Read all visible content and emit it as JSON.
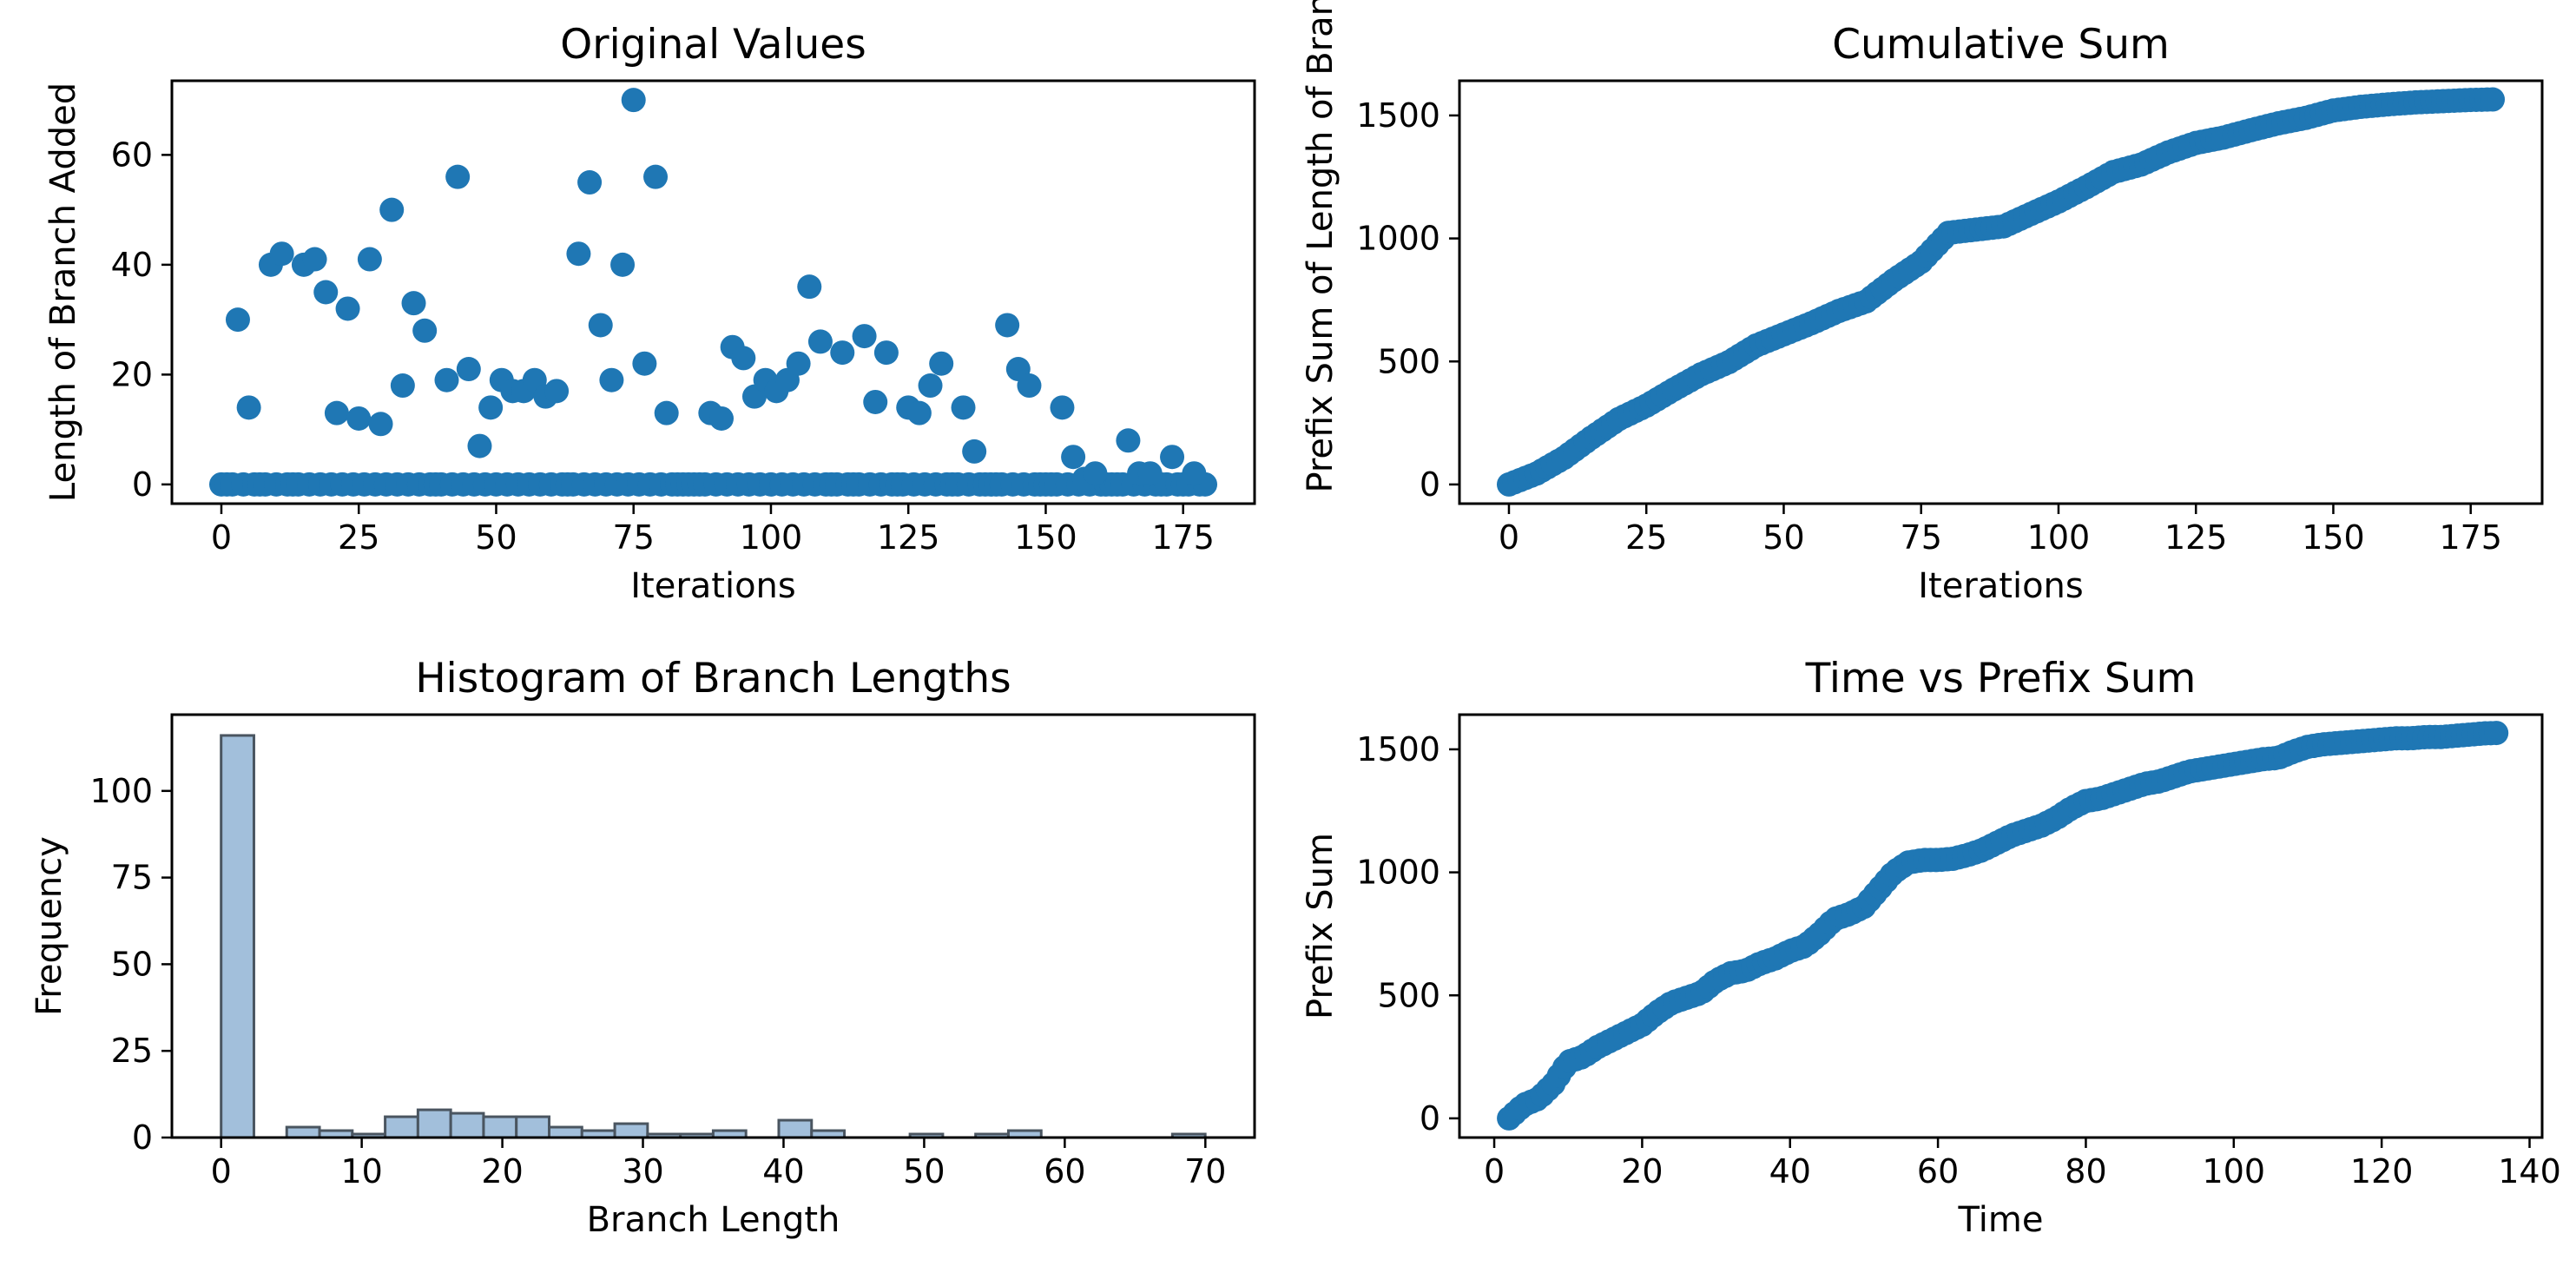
{
  "colors": {
    "marker": "#1f77b4",
    "hist_fill": "#a2bfdb",
    "hist_edge": "#4a5560"
  },
  "chart_data": [
    {
      "id": "original",
      "type": "scatter",
      "title": "Original Values",
      "xlabel": "Iterations",
      "ylabel": "Length of Branch Added",
      "xlim": [
        -9,
        188
      ],
      "ylim": [
        -3.5,
        73.5
      ],
      "xticks": [
        0,
        25,
        50,
        75,
        100,
        125,
        150,
        175
      ],
      "yticks": [
        0,
        20,
        40,
        60
      ],
      "points": [
        [
          3,
          30
        ],
        [
          5,
          14
        ],
        [
          9,
          40
        ],
        [
          11,
          42
        ],
        [
          15,
          40
        ],
        [
          17,
          41
        ],
        [
          19,
          35
        ],
        [
          21,
          13
        ],
        [
          23,
          32
        ],
        [
          25,
          12
        ],
        [
          27,
          41
        ],
        [
          29,
          11
        ],
        [
          31,
          50
        ],
        [
          33,
          18
        ],
        [
          35,
          33
        ],
        [
          37,
          28
        ],
        [
          41,
          19
        ],
        [
          43,
          56
        ],
        [
          45,
          21
        ],
        [
          47,
          7
        ],
        [
          49,
          14
        ],
        [
          51,
          19
        ],
        [
          53,
          17
        ],
        [
          55,
          17
        ],
        [
          57,
          19
        ],
        [
          59,
          16
        ],
        [
          61,
          17
        ],
        [
          65,
          42
        ],
        [
          67,
          55
        ],
        [
          69,
          29
        ],
        [
          71,
          19
        ],
        [
          73,
          40
        ],
        [
          75,
          70
        ],
        [
          77,
          22
        ],
        [
          79,
          56
        ],
        [
          81,
          13
        ],
        [
          89,
          13
        ],
        [
          91,
          12
        ],
        [
          93,
          25
        ],
        [
          95,
          23
        ],
        [
          97,
          16
        ],
        [
          99,
          19
        ],
        [
          101,
          17
        ],
        [
          103,
          19
        ],
        [
          105,
          22
        ],
        [
          107,
          36
        ],
        [
          109,
          26
        ],
        [
          113,
          24
        ],
        [
          117,
          27
        ],
        [
          119,
          15
        ],
        [
          121,
          24
        ],
        [
          125,
          14
        ],
        [
          127,
          13
        ],
        [
          129,
          18
        ],
        [
          131,
          22
        ],
        [
          135,
          14
        ],
        [
          137,
          6
        ],
        [
          143,
          29
        ],
        [
          145,
          21
        ],
        [
          147,
          18
        ],
        [
          153,
          14
        ],
        [
          155,
          5
        ],
        [
          157,
          1
        ],
        [
          159,
          2
        ],
        [
          165,
          8
        ],
        [
          167,
          2
        ],
        [
          169,
          2
        ],
        [
          173,
          5
        ],
        [
          177,
          2
        ]
      ],
      "zeros_at": [
        0,
        1,
        2,
        4,
        6,
        7,
        8,
        10,
        12,
        13,
        14,
        16,
        18,
        20,
        22,
        24,
        26,
        28,
        30,
        32,
        34,
        36,
        38,
        39,
        40,
        42,
        44,
        46,
        48,
        50,
        52,
        54,
        56,
        58,
        60,
        62,
        63,
        64,
        66,
        68,
        70,
        72,
        74,
        76,
        78,
        80,
        82,
        83,
        84,
        85,
        86,
        87,
        88,
        90,
        92,
        94,
        96,
        98,
        100,
        102,
        104,
        106,
        108,
        110,
        111,
        112,
        114,
        115,
        116,
        118,
        120,
        122,
        123,
        124,
        126,
        128,
        130,
        132,
        133,
        134,
        136,
        138,
        139,
        140,
        141,
        142,
        144,
        146,
        148,
        149,
        150,
        151,
        152,
        154,
        156,
        158,
        160,
        161,
        162,
        163,
        164,
        166,
        168,
        170,
        171,
        172,
        174,
        175,
        176,
        178,
        179
      ]
    },
    {
      "id": "cumsum",
      "type": "scatter",
      "title": "Cumulative Sum",
      "xlabel": "Iterations",
      "ylabel": "Prefix Sum of Length of Branch Added",
      "xlim": [
        -9,
        188
      ],
      "ylim": [
        -78,
        1641
      ],
      "xticks": [
        0,
        25,
        50,
        75,
        100,
        125,
        150,
        175
      ],
      "yticks": [
        0,
        500,
        1000,
        1500
      ],
      "curve": [
        [
          0,
          0
        ],
        [
          5,
          44
        ],
        [
          10,
          108
        ],
        [
          15,
          190
        ],
        [
          20,
          266
        ],
        [
          25,
          320
        ],
        [
          30,
          386
        ],
        [
          35,
          448
        ],
        [
          40,
          497
        ],
        [
          45,
          565
        ],
        [
          50,
          610
        ],
        [
          55,
          655
        ],
        [
          60,
          705
        ],
        [
          65,
          744
        ],
        [
          70,
          830
        ],
        [
          75,
          905
        ],
        [
          80,
          1023
        ],
        [
          85,
          1036
        ],
        [
          90,
          1049
        ],
        [
          95,
          1100
        ],
        [
          100,
          1150
        ],
        [
          105,
          1208
        ],
        [
          110,
          1270
        ],
        [
          115,
          1300
        ],
        [
          120,
          1350
        ],
        [
          125,
          1388
        ],
        [
          130,
          1410
        ],
        [
          135,
          1440
        ],
        [
          140,
          1468
        ],
        [
          145,
          1490
        ],
        [
          150,
          1520
        ],
        [
          155,
          1535
        ],
        [
          160,
          1545
        ],
        [
          165,
          1553
        ],
        [
          170,
          1558
        ],
        [
          175,
          1563
        ],
        [
          179,
          1565
        ]
      ]
    },
    {
      "id": "histogram",
      "type": "bar",
      "title": "Histogram of Branch Lengths",
      "xlabel": "Branch Length",
      "ylabel": "Frequency",
      "xlim": [
        -3.5,
        73.5
      ],
      "ylim": [
        0,
        122
      ],
      "xticks": [
        0,
        10,
        20,
        30,
        40,
        50,
        60,
        70
      ],
      "yticks": [
        0,
        25,
        50,
        75,
        100
      ],
      "bin_start": 0,
      "bin_width": 2.333,
      "counts": [
        116,
        0,
        3,
        2,
        1,
        6,
        8,
        7,
        6,
        6,
        3,
        2,
        4,
        1,
        1,
        2,
        0,
        5,
        2,
        0,
        0,
        1,
        0,
        1,
        2,
        0,
        0,
        0,
        0,
        1
      ]
    },
    {
      "id": "time",
      "type": "scatter",
      "title": "Time vs Prefix Sum",
      "xlabel": "Time",
      "ylabel": "Prefix Sum",
      "xlim": [
        -4.7,
        141.7
      ],
      "ylim": [
        -78,
        1641
      ],
      "xticks": [
        0,
        20,
        40,
        60,
        80,
        100,
        120,
        140
      ],
      "yticks": [
        0,
        500,
        1000,
        1500
      ],
      "curve": [
        [
          2,
          0
        ],
        [
          4,
          55
        ],
        [
          6,
          80
        ],
        [
          8,
          140
        ],
        [
          10,
          230
        ],
        [
          12,
          250
        ],
        [
          14,
          290
        ],
        [
          16,
          320
        ],
        [
          18,
          350
        ],
        [
          20,
          380
        ],
        [
          22,
          430
        ],
        [
          24,
          470
        ],
        [
          26,
          490
        ],
        [
          28,
          510
        ],
        [
          30,
          560
        ],
        [
          32,
          590
        ],
        [
          34,
          600
        ],
        [
          36,
          630
        ],
        [
          38,
          650
        ],
        [
          40,
          680
        ],
        [
          42,
          700
        ],
        [
          44,
          750
        ],
        [
          46,
          810
        ],
        [
          48,
          830
        ],
        [
          50,
          860
        ],
        [
          52,
          930
        ],
        [
          54,
          1000
        ],
        [
          56,
          1040
        ],
        [
          58,
          1050
        ],
        [
          60,
          1050
        ],
        [
          62,
          1055
        ],
        [
          64,
          1070
        ],
        [
          66,
          1090
        ],
        [
          68,
          1120
        ],
        [
          70,
          1150
        ],
        [
          72,
          1170
        ],
        [
          74,
          1190
        ],
        [
          76,
          1220
        ],
        [
          78,
          1260
        ],
        [
          80,
          1290
        ],
        [
          82,
          1300
        ],
        [
          84,
          1320
        ],
        [
          86,
          1340
        ],
        [
          88,
          1360
        ],
        [
          90,
          1370
        ],
        [
          92,
          1390
        ],
        [
          94,
          1410
        ],
        [
          96,
          1420
        ],
        [
          98,
          1430
        ],
        [
          100,
          1440
        ],
        [
          102,
          1450
        ],
        [
          104,
          1460
        ],
        [
          106,
          1465
        ],
        [
          108,
          1490
        ],
        [
          110,
          1510
        ],
        [
          112,
          1520
        ],
        [
          114,
          1525
        ],
        [
          116,
          1530
        ],
        [
          118,
          1535
        ],
        [
          120,
          1540
        ],
        [
          122,
          1545
        ],
        [
          124,
          1545
        ],
        [
          126,
          1550
        ],
        [
          128,
          1550
        ],
        [
          130,
          1555
        ],
        [
          132,
          1560
        ],
        [
          134,
          1565
        ],
        [
          136,
          1567
        ]
      ]
    }
  ]
}
